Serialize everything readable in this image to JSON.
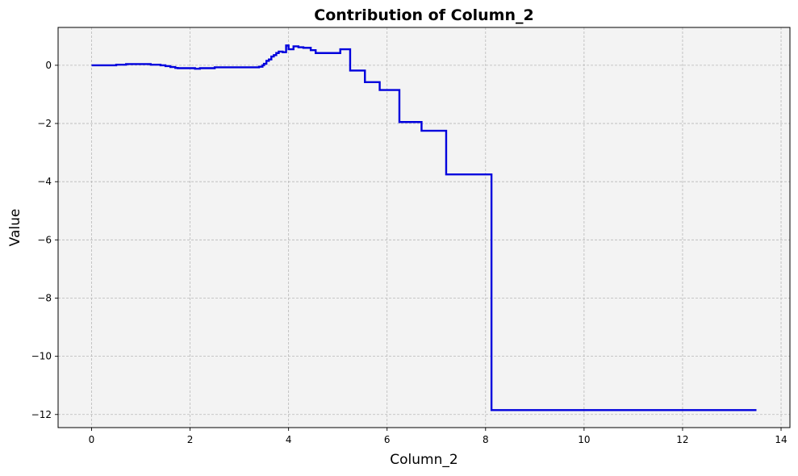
{
  "chart_data": {
    "type": "line",
    "step": "post",
    "title": "Contribution of Column_2",
    "xlabel": "Column_2",
    "ylabel": "Value",
    "xlim": [
      -0.68,
      14.18
    ],
    "ylim": [
      -12.45,
      1.3
    ],
    "xticks": [
      0,
      2,
      4,
      6,
      8,
      10,
      12,
      14
    ],
    "xtick_labels": [
      "0",
      "2",
      "4",
      "6",
      "8",
      "10",
      "12",
      "14"
    ],
    "yticks": [
      0,
      -2,
      -4,
      -6,
      -8,
      -10,
      -12
    ],
    "ytick_labels": [
      "0",
      "−2",
      "−4",
      "−6",
      "−8",
      "−10",
      "−12"
    ],
    "grid": true,
    "legend": "none",
    "series": [
      {
        "color": "#0000dd",
        "x": [
          0,
          0.5,
          0.7,
          1.2,
          1.4,
          1.5,
          1.6,
          1.7,
          1.75,
          2.1,
          2.2,
          2.5,
          3.4,
          3.47,
          3.5,
          3.55,
          3.6,
          3.65,
          3.7,
          3.75,
          3.8,
          3.88,
          3.95,
          4.0,
          4.1,
          4.2,
          4.3,
          4.45,
          4.55,
          5.05,
          5.25,
          5.55,
          5.85,
          6.25,
          6.7,
          7.2,
          8.12,
          13.5
        ],
        "y": [
          0,
          0.02,
          0.04,
          0.02,
          0.0,
          -0.03,
          -0.06,
          -0.09,
          -0.1,
          -0.12,
          -0.1,
          -0.07,
          -0.05,
          0.0,
          0.05,
          0.15,
          0.2,
          0.3,
          0.35,
          0.42,
          0.47,
          0.45,
          0.68,
          0.55,
          0.65,
          0.62,
          0.6,
          0.52,
          0.42,
          0.55,
          -0.18,
          -0.58,
          -0.85,
          -1.95,
          -2.25,
          -3.75,
          -11.85,
          -11.85
        ]
      }
    ]
  }
}
